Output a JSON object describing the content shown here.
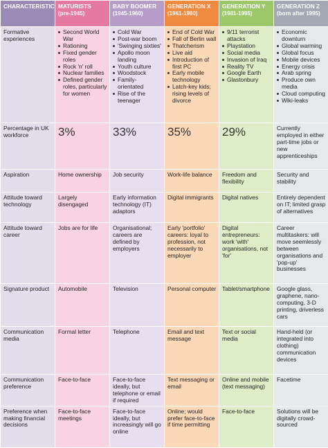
{
  "headers": [
    {
      "title": "CHARACTERISTICS",
      "sub": ""
    },
    {
      "title": "MATURISTS",
      "sub": "(pre-1945)"
    },
    {
      "title": "BABY BOOMER",
      "sub": "(1945-1960)"
    },
    {
      "title": "GENERATION X",
      "sub": "(1961-1980)"
    },
    {
      "title": "GENERATION Y",
      "sub": "(1981-1995)"
    },
    {
      "title": "GENERATION Z",
      "sub": "(born after 1995)"
    }
  ],
  "formative": {
    "label": "Formative experiences",
    "maturists": [
      "Second World War",
      "Rationing",
      "Fixed gender roles",
      "Rock 'n' roll",
      "Nuclear families",
      "Defined gender roles, particularly for women"
    ],
    "baby_boomer": [
      "Cold War",
      "Post-war boom",
      "'Swinging sixties'",
      "Apollo moon landing",
      "Youth culture",
      "Woodstock",
      "Family-orientated",
      "Rise of the teenager"
    ],
    "gen_x": [
      "End of Cold War",
      "Fall of Berlin wall",
      "Thatcherism",
      "Live aid",
      "Introduction of first PC",
      "Early mobile technology",
      "Latch-key kids; rising levels of divorce"
    ],
    "gen_y": [
      "9/11 terrorist attacks",
      "Playstation",
      "Social media",
      "Invasion of Iraq",
      "Reality TV",
      "Google Earth",
      "Glastonbury"
    ],
    "gen_z": [
      "Economic downturn",
      "Global warming",
      "Global focus",
      "Mobile devices",
      "Energy crisis",
      "Arab spring",
      "Produce own media",
      "Cloud computing",
      "Wiki-leaks"
    ]
  },
  "percentage": {
    "label": "Percentage in UK workforce",
    "maturists": "3%",
    "baby_boomer": "33%",
    "gen_x": "35%",
    "gen_y": "29%",
    "gen_z": "Currently employed in either part-time jobs or new apprenticeships"
  },
  "aspiration": {
    "label": "Aspiration",
    "maturists": "Home ownership",
    "baby_boomer": "Job security",
    "gen_x": "Work-life balance",
    "gen_y": "Freedom and flexibility",
    "gen_z": "Security and stability"
  },
  "technology": {
    "label": "Attitude toward technology",
    "maturists": "Largely disengaged",
    "baby_boomer": "Early information technology (IT) adaptors",
    "gen_x": "Digital immigrants",
    "gen_y": "Digital natives",
    "gen_z": "Entirely dependent on IT; limited grasp of alternatives"
  },
  "career": {
    "label": "Attitude toward career",
    "maturists": "Jobs are for life",
    "baby_boomer": "Organisational; careers are defined by employers",
    "gen_x": "Early 'portfolio' careers: loyal to profession, not necessarily to employer",
    "gen_y": "Digital entrepreneurs: work 'with' organisations, not 'for'",
    "gen_z": "Career multitaskers: will move seemlessly between organisations and 'pop-up' businesses"
  },
  "signature": {
    "label": "Signature product",
    "maturists": "Automobile",
    "baby_boomer": "Television",
    "gen_x": "Personal computer",
    "gen_y": "Tablet/smartphone",
    "gen_z": "Google glass, graphene, nano-computing, 3-D printing, driverless cars"
  },
  "media": {
    "label": "Communication media",
    "maturists": "Formal letter",
    "baby_boomer": "Telephone",
    "gen_x": "Email and text message",
    "gen_y": "Text or social media",
    "gen_z": "Hand-held (or integrated into clothing) communication devices"
  },
  "preference": {
    "label": "Communication preference",
    "maturists": "Face-to-face",
    "baby_boomer": "Face-to-face ideally, but telephone or email if required",
    "gen_x": "Text messaging or email",
    "gen_y": "Online and mobile (text messaging)",
    "gen_z": "Facetime"
  },
  "financial": {
    "label": "Preference when making financial decisions",
    "maturists": "Face-to-face meetings",
    "baby_boomer": "Face-to-face ideally, but increasingly will go online",
    "gen_x": "Online; would prefer face-to-face if time permitting",
    "gen_y": "Face-to-face",
    "gen_z": "Solutions will be digitally crowd-sourced"
  }
}
